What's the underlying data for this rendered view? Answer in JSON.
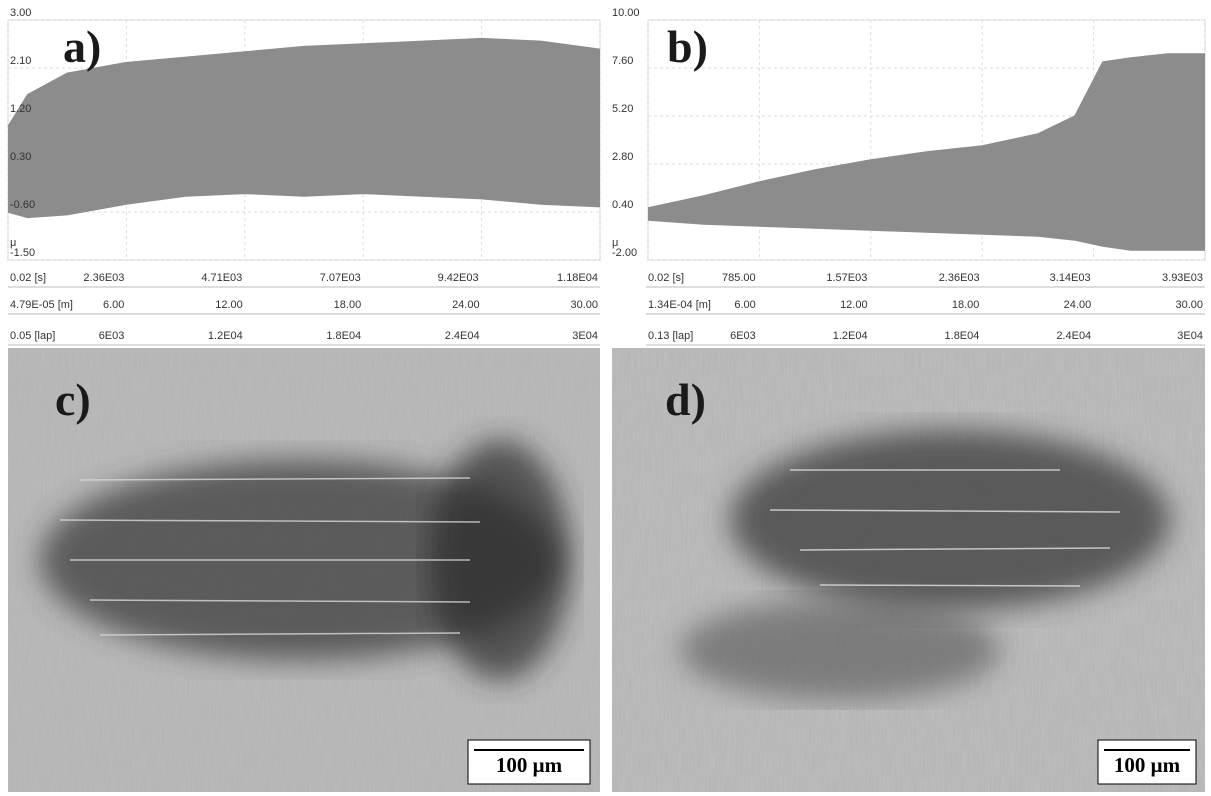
{
  "chart_data": [
    {
      "type": "band",
      "label": "a)",
      "y_label": "μ",
      "x": [
        0,
        1,
        3,
        6,
        9,
        12,
        15,
        18,
        21,
        24,
        27,
        30
      ],
      "series": [
        {
          "color": "#8c8c8c",
          "values": [
            1.0,
            1.6,
            2.0,
            2.2,
            2.3,
            2.4,
            2.5,
            2.55,
            2.6,
            2.65,
            2.6,
            2.45
          ]
        },
        {
          "color": "#8c8c8c",
          "values": [
            -0.6,
            -0.7,
            -0.65,
            -0.45,
            -0.3,
            -0.25,
            -0.3,
            -0.25,
            -0.3,
            -0.35,
            -0.45,
            -0.5
          ]
        }
      ],
      "ylim": [
        -1.5,
        3
      ],
      "yticks": [
        {
          "value": 3,
          "label": "3.00"
        },
        {
          "value": 2.1,
          "label": "2.10"
        },
        {
          "value": 1.2,
          "label": "1.20"
        },
        {
          "value": 0.3,
          "label": "0.30"
        },
        {
          "value": -0.6,
          "label": "-0.60"
        },
        {
          "value": -1.5,
          "label": "-1.50"
        }
      ],
      "time_lim": [
        0,
        11800
      ],
      "time_ticks": [
        {
          "value": 0.02,
          "label": "0.02 [s]"
        },
        {
          "value": 2360,
          "label": "2.36E03"
        },
        {
          "value": 4710,
          "label": "4.71E03"
        },
        {
          "value": 7070,
          "label": "7.07E03"
        },
        {
          "value": 9420,
          "label": "9.42E03"
        },
        {
          "value": 11800,
          "label": "1.18E04"
        }
      ],
      "xlim": [
        0,
        30
      ],
      "xticks": [
        {
          "value": 4.79e-05,
          "label": "4.79E-05 [m]"
        },
        {
          "value": 6,
          "label": "6.00"
        },
        {
          "value": 12,
          "label": "12.00"
        },
        {
          "value": 18,
          "label": "18.00"
        },
        {
          "value": 24,
          "label": "24.00"
        },
        {
          "value": 30,
          "label": "30.00"
        }
      ],
      "lap_lim": [
        0,
        30000
      ],
      "lap_ticks": [
        {
          "value": 0.05,
          "label": "0.05 [lap]"
        },
        {
          "value": 6000,
          "label": "6E03"
        },
        {
          "value": 12000,
          "label": "1.2E04"
        },
        {
          "value": 18000,
          "label": "1.8E04"
        },
        {
          "value": 24000,
          "label": "2.4E04"
        },
        {
          "value": 30000,
          "label": "3E04"
        }
      ],
      "grid": true
    },
    {
      "type": "band",
      "label": "b)",
      "y_label": "μ",
      "x": [
        0,
        3,
        6,
        9,
        12,
        15,
        18,
        21,
        23,
        24.5,
        26,
        28,
        30
      ],
      "series": [
        {
          "color": "#8c8c8c",
          "values": [
            0.6,
            1.2,
            1.9,
            2.5,
            3.0,
            3.4,
            3.7,
            4.3,
            5.2,
            7.9,
            8.1,
            8.3,
            8.3
          ]
        },
        {
          "color": "#8c8c8c",
          "values": [
            0.0,
            -0.2,
            -0.3,
            -0.4,
            -0.5,
            -0.6,
            -0.7,
            -0.8,
            -1.0,
            -1.3,
            -1.5,
            -1.5,
            -1.5
          ]
        }
      ],
      "ylim": [
        -2,
        10
      ],
      "yticks": [
        {
          "value": 10,
          "label": "10.00"
        },
        {
          "value": 7.6,
          "label": "7.60"
        },
        {
          "value": 5.2,
          "label": "5.20"
        },
        {
          "value": 2.8,
          "label": "2.80"
        },
        {
          "value": 0.4,
          "label": "0.40"
        },
        {
          "value": -2,
          "label": "-2.00"
        }
      ],
      "time_lim": [
        0,
        3930
      ],
      "time_ticks": [
        {
          "value": 0.02,
          "label": "0.02 [s]"
        },
        {
          "value": 785,
          "label": "785.00"
        },
        {
          "value": 1570,
          "label": "1.57E03"
        },
        {
          "value": 2360,
          "label": "2.36E03"
        },
        {
          "value": 3140,
          "label": "3.14E03"
        },
        {
          "value": 3930,
          "label": "3.93E03"
        }
      ],
      "xlim": [
        0,
        30
      ],
      "xticks": [
        {
          "value": 0.000134,
          "label": "1.34E-04 [m]"
        },
        {
          "value": 6,
          "label": "6.00"
        },
        {
          "value": 12,
          "label": "12.00"
        },
        {
          "value": 18,
          "label": "18.00"
        },
        {
          "value": 24,
          "label": "24.00"
        },
        {
          "value": 30,
          "label": "30.00"
        }
      ],
      "lap_lim": [
        0,
        30000
      ],
      "lap_ticks": [
        {
          "value": 0.13,
          "label": "0.13 [lap]"
        },
        {
          "value": 6000,
          "label": "6E03"
        },
        {
          "value": 12000,
          "label": "1.2E04"
        },
        {
          "value": 18000,
          "label": "1.8E04"
        },
        {
          "value": 24000,
          "label": "2.4E04"
        },
        {
          "value": 30000,
          "label": "3E04"
        }
      ],
      "grid": true
    }
  ],
  "images": [
    {
      "label": "c)",
      "scale_bar": "100 μm"
    },
    {
      "label": "d)",
      "scale_bar": "100 μm"
    }
  ]
}
